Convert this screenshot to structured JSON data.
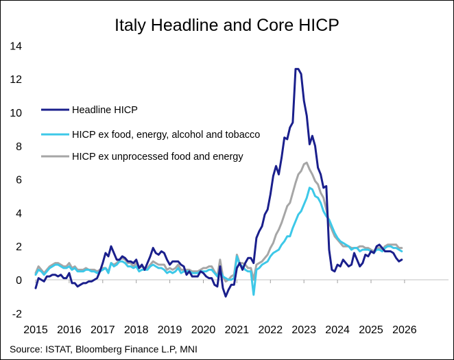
{
  "chart_data": {
    "type": "line",
    "title": "Italy Headline and Core HICP",
    "xlabel": "",
    "ylabel": "",
    "source": "Source: ISTAT,  Bloomberg Finance L.P, MNI",
    "ylim": [
      -2,
      14
    ],
    "xlim": [
      2015,
      2026.3
    ],
    "y_ticks": [
      14,
      12,
      10,
      8,
      6,
      4,
      2,
      0,
      -2
    ],
    "x_ticks": [
      2015,
      2016,
      2017,
      2018,
      2019,
      2020,
      2021,
      2022,
      2023,
      2024,
      2025,
      2026
    ],
    "legend_position": "upper-left",
    "series": [
      {
        "name": "Headline HICP",
        "color": "#1a1f8c",
        "x": [
          2015.0,
          2015.083,
          2015.167,
          2015.25,
          2015.333,
          2015.417,
          2015.5,
          2015.583,
          2015.667,
          2015.75,
          2015.833,
          2015.917,
          2016.0,
          2016.083,
          2016.167,
          2016.25,
          2016.333,
          2016.417,
          2016.5,
          2016.583,
          2016.667,
          2016.75,
          2016.833,
          2016.917,
          2017.0,
          2017.083,
          2017.167,
          2017.25,
          2017.333,
          2017.417,
          2017.5,
          2017.583,
          2017.667,
          2017.75,
          2017.833,
          2017.917,
          2018.0,
          2018.083,
          2018.167,
          2018.25,
          2018.333,
          2018.417,
          2018.5,
          2018.583,
          2018.667,
          2018.75,
          2018.833,
          2018.917,
          2019.0,
          2019.083,
          2019.167,
          2019.25,
          2019.333,
          2019.417,
          2019.5,
          2019.583,
          2019.667,
          2019.75,
          2019.833,
          2019.917,
          2020.0,
          2020.083,
          2020.167,
          2020.25,
          2020.333,
          2020.417,
          2020.5,
          2020.583,
          2020.667,
          2020.75,
          2020.833,
          2020.917,
          2021.0,
          2021.083,
          2021.167,
          2021.25,
          2021.333,
          2021.417,
          2021.5,
          2021.583,
          2021.667,
          2021.75,
          2021.833,
          2021.917,
          2022.0,
          2022.083,
          2022.167,
          2022.25,
          2022.333,
          2022.417,
          2022.5,
          2022.583,
          2022.667,
          2022.75,
          2022.833,
          2022.917,
          2023.0,
          2023.083,
          2023.167,
          2023.25,
          2023.333,
          2023.417,
          2023.5,
          2023.583,
          2023.667,
          2023.75,
          2023.833,
          2023.917,
          2024.0,
          2024.083,
          2024.167,
          2024.25,
          2024.333,
          2024.417,
          2024.5,
          2024.583,
          2024.667,
          2024.75,
          2024.833,
          2024.917,
          2025.0,
          2025.083,
          2025.167,
          2025.25,
          2025.333,
          2025.417,
          2025.5,
          2025.583,
          2025.667,
          2025.75,
          2025.833,
          2025.917
        ],
        "values": [
          -0.5,
          0.1,
          0.0,
          -0.1,
          0.2,
          0.2,
          0.3,
          0.3,
          0.2,
          0.3,
          0.1,
          0.1,
          0.4,
          -0.2,
          -0.2,
          -0.4,
          -0.3,
          -0.2,
          -0.2,
          -0.1,
          -0.1,
          0.0,
          0.1,
          0.5,
          1.0,
          1.6,
          1.4,
          2.0,
          1.6,
          1.2,
          1.2,
          1.4,
          1.3,
          1.1,
          1.1,
          1.0,
          1.2,
          0.7,
          0.9,
          0.6,
          1.0,
          1.4,
          1.9,
          1.6,
          1.5,
          1.7,
          1.6,
          1.2,
          0.9,
          1.1,
          1.1,
          1.1,
          0.9,
          0.8,
          0.3,
          0.5,
          0.2,
          0.2,
          0.2,
          0.5,
          0.4,
          0.2,
          0.1,
          0.1,
          -0.3,
          -0.4,
          0.8,
          -0.5,
          -1.0,
          -0.6,
          -0.3,
          -0.3,
          0.7,
          1.0,
          0.6,
          1.0,
          1.3,
          1.3,
          1.0,
          2.5,
          2.9,
          3.2,
          3.9,
          4.2,
          5.1,
          6.2,
          6.8,
          6.3,
          7.3,
          8.5,
          8.4,
          9.1,
          9.4,
          12.6,
          12.6,
          12.3,
          10.7,
          9.8,
          8.1,
          8.6,
          8.0,
          6.7,
          6.3,
          5.5,
          5.6,
          1.8,
          0.6,
          0.5,
          0.9,
          0.8,
          1.2,
          1.0,
          0.8,
          0.9,
          1.6,
          1.2,
          0.8,
          1.0,
          1.5,
          1.4,
          1.7,
          1.6,
          2.0,
          2.1,
          1.9,
          1.7,
          1.7,
          1.7,
          1.6,
          1.3,
          1.1,
          1.2
        ]
      },
      {
        "name": "HICP ex food, energy, alcohol and tobacco",
        "color": "#3dc8e8",
        "x": [
          2015.0,
          2015.083,
          2015.167,
          2015.25,
          2015.333,
          2015.417,
          2015.5,
          2015.583,
          2015.667,
          2015.75,
          2015.833,
          2015.917,
          2016.0,
          2016.083,
          2016.167,
          2016.25,
          2016.333,
          2016.417,
          2016.5,
          2016.583,
          2016.667,
          2016.75,
          2016.833,
          2016.917,
          2017.0,
          2017.083,
          2017.167,
          2017.25,
          2017.333,
          2017.417,
          2017.5,
          2017.583,
          2017.667,
          2017.75,
          2017.833,
          2017.917,
          2018.0,
          2018.083,
          2018.167,
          2018.25,
          2018.333,
          2018.417,
          2018.5,
          2018.583,
          2018.667,
          2018.75,
          2018.833,
          2018.917,
          2019.0,
          2019.083,
          2019.167,
          2019.25,
          2019.333,
          2019.417,
          2019.5,
          2019.583,
          2019.667,
          2019.75,
          2019.833,
          2019.917,
          2020.0,
          2020.083,
          2020.167,
          2020.25,
          2020.333,
          2020.417,
          2020.5,
          2020.583,
          2020.667,
          2020.75,
          2020.833,
          2020.917,
          2021.0,
          2021.083,
          2021.167,
          2021.25,
          2021.333,
          2021.417,
          2021.5,
          2021.583,
          2021.667,
          2021.75,
          2021.833,
          2021.917,
          2022.0,
          2022.083,
          2022.167,
          2022.25,
          2022.333,
          2022.417,
          2022.5,
          2022.583,
          2022.667,
          2022.75,
          2022.833,
          2022.917,
          2023.0,
          2023.083,
          2023.167,
          2023.25,
          2023.333,
          2023.417,
          2023.5,
          2023.583,
          2023.667,
          2023.75,
          2023.833,
          2023.917,
          2024.0,
          2024.083,
          2024.167,
          2024.25,
          2024.333,
          2024.417,
          2024.5,
          2024.583,
          2024.667,
          2024.75,
          2024.833,
          2024.917,
          2025.0,
          2025.083,
          2025.167,
          2025.25,
          2025.333,
          2025.417,
          2025.5,
          2025.583,
          2025.667,
          2025.75,
          2025.833,
          2025.917
        ],
        "values": [
          0.3,
          0.6,
          0.5,
          0.3,
          0.5,
          0.7,
          0.8,
          0.9,
          0.9,
          0.8,
          0.7,
          0.7,
          0.8,
          0.6,
          0.7,
          0.5,
          0.5,
          0.5,
          0.6,
          0.6,
          0.5,
          0.5,
          0.4,
          0.5,
          0.6,
          0.7,
          0.4,
          1.0,
          0.8,
          0.9,
          1.1,
          1.1,
          1.0,
          0.8,
          0.8,
          0.7,
          0.8,
          0.5,
          0.6,
          0.6,
          0.6,
          0.8,
          0.9,
          0.8,
          0.7,
          0.7,
          0.6,
          0.4,
          0.5,
          0.4,
          0.5,
          0.7,
          0.4,
          0.5,
          0.5,
          0.5,
          0.4,
          0.4,
          0.4,
          0.5,
          0.5,
          0.5,
          0.6,
          0.6,
          0.4,
          0.2,
          0.6,
          0.2,
          0.1,
          0.0,
          0.0,
          0.1,
          1.4,
          0.9,
          0.8,
          0.6,
          0.5,
          0.5,
          -0.9,
          0.6,
          0.7,
          0.9,
          1.0,
          1.1,
          1.4,
          1.6,
          1.7,
          1.8,
          2.1,
          2.3,
          2.6,
          2.6,
          3.1,
          3.5,
          3.9,
          4.1,
          4.5,
          4.9,
          5.5,
          5.4,
          5.0,
          4.9,
          4.6,
          4.1,
          3.8,
          3.6,
          3.2,
          2.8,
          2.5,
          2.3,
          2.2,
          2.1,
          2.0,
          1.8,
          1.9,
          1.9,
          1.7,
          1.8,
          1.8,
          1.8,
          1.7,
          1.6,
          1.8,
          1.8,
          1.7,
          1.9,
          2.0,
          2.0,
          1.9,
          1.9,
          1.8,
          1.7
        ]
      },
      {
        "name": "HICP ex unprocessed food and energy",
        "color": "#a6a6a6",
        "x": [
          2015.0,
          2015.083,
          2015.167,
          2015.25,
          2015.333,
          2015.417,
          2015.5,
          2015.583,
          2015.667,
          2015.75,
          2015.833,
          2015.917,
          2016.0,
          2016.083,
          2016.167,
          2016.25,
          2016.333,
          2016.417,
          2016.5,
          2016.583,
          2016.667,
          2016.75,
          2016.833,
          2016.917,
          2017.0,
          2017.083,
          2017.167,
          2017.25,
          2017.333,
          2017.417,
          2017.5,
          2017.583,
          2017.667,
          2017.75,
          2017.833,
          2017.917,
          2018.0,
          2018.083,
          2018.167,
          2018.25,
          2018.333,
          2018.417,
          2018.5,
          2018.583,
          2018.667,
          2018.75,
          2018.833,
          2018.917,
          2019.0,
          2019.083,
          2019.167,
          2019.25,
          2019.333,
          2019.417,
          2019.5,
          2019.583,
          2019.667,
          2019.75,
          2019.833,
          2019.917,
          2020.0,
          2020.083,
          2020.167,
          2020.25,
          2020.333,
          2020.417,
          2020.5,
          2020.583,
          2020.667,
          2020.75,
          2020.833,
          2020.917,
          2021.0,
          2021.083,
          2021.167,
          2021.25,
          2021.333,
          2021.417,
          2021.5,
          2021.583,
          2021.667,
          2021.75,
          2021.833,
          2021.917,
          2022.0,
          2022.083,
          2022.167,
          2022.25,
          2022.333,
          2022.417,
          2022.5,
          2022.583,
          2022.667,
          2022.75,
          2022.833,
          2022.917,
          2023.0,
          2023.083,
          2023.167,
          2023.25,
          2023.333,
          2023.417,
          2023.5,
          2023.583,
          2023.667,
          2023.75,
          2023.833,
          2023.917,
          2024.0,
          2024.083,
          2024.167,
          2024.25,
          2024.333,
          2024.417,
          2024.5,
          2024.583,
          2024.667,
          2024.75,
          2024.833,
          2024.917,
          2025.0,
          2025.083,
          2025.167,
          2025.25,
          2025.333,
          2025.417,
          2025.5,
          2025.583,
          2025.667,
          2025.75,
          2025.833,
          2025.917
        ],
        "values": [
          0.4,
          0.8,
          0.6,
          0.4,
          0.6,
          0.8,
          0.9,
          1.0,
          1.0,
          0.9,
          0.8,
          0.8,
          1.0,
          0.7,
          0.8,
          0.6,
          0.6,
          0.6,
          0.7,
          0.6,
          0.6,
          0.6,
          0.5,
          0.6,
          0.7,
          0.7,
          0.5,
          1.0,
          0.9,
          1.0,
          1.2,
          1.3,
          1.2,
          1.0,
          1.0,
          0.8,
          1.0,
          0.7,
          0.8,
          0.7,
          0.7,
          0.9,
          1.1,
          1.0,
          0.9,
          0.9,
          0.9,
          0.6,
          0.7,
          0.6,
          0.7,
          0.9,
          0.6,
          0.6,
          0.6,
          0.6,
          0.5,
          0.5,
          0.5,
          0.6,
          0.7,
          0.7,
          0.8,
          0.8,
          0.5,
          0.2,
          1.2,
          0.2,
          -0.1,
          0.0,
          0.2,
          0.3,
          1.5,
          1.0,
          1.0,
          0.9,
          0.7,
          0.7,
          0.0,
          0.9,
          1.0,
          1.1,
          1.3,
          1.5,
          1.9,
          2.2,
          2.7,
          3.0,
          3.4,
          3.9,
          4.4,
          4.6,
          5.2,
          5.8,
          6.3,
          6.5,
          6.9,
          7.0,
          6.6,
          6.3,
          5.9,
          5.7,
          5.2,
          4.9,
          4.2,
          3.4,
          3.0,
          2.6,
          2.4,
          2.2,
          2.0,
          2.0,
          2.0,
          1.9,
          1.9,
          1.9,
          2.0,
          2.0,
          1.9,
          1.9,
          1.8,
          1.7,
          1.9,
          1.9,
          1.8,
          2.0,
          2.1,
          2.1,
          2.1,
          2.1,
          1.9,
          1.9
        ]
      }
    ]
  }
}
